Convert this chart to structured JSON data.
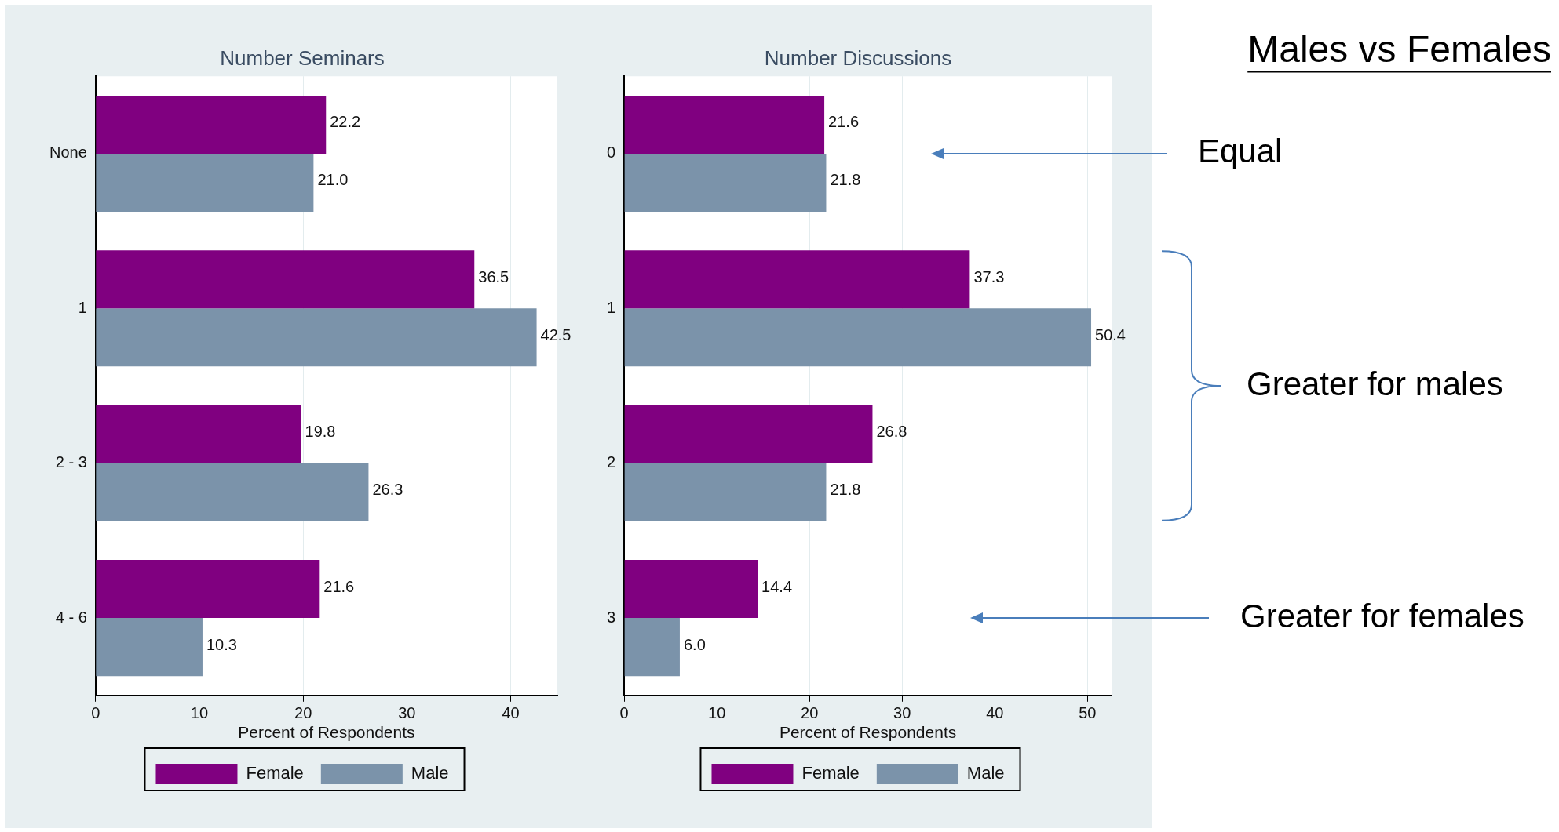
{
  "chart_data": [
    {
      "type": "bar",
      "orientation": "horizontal",
      "title": "Number Seminars",
      "xlabel": "Percent of Respondents",
      "categories": [
        "None",
        "1",
        "2 - 3",
        "4 - 6"
      ],
      "series": [
        {
          "name": "Female",
          "color": "#800080",
          "values": [
            22.2,
            36.5,
            19.8,
            21.6
          ],
          "value_labels": [
            "22.2",
            "36.5",
            "19.8",
            "21.6"
          ]
        },
        {
          "name": "Male",
          "color": "#7b93aa",
          "values": [
            21.0,
            42.5,
            26.3,
            10.3
          ],
          "value_labels": [
            "21.0",
            "42.5",
            "26.3",
            "10.3"
          ]
        }
      ],
      "xlim": [
        0,
        44.5
      ],
      "xticks": [
        0,
        10,
        20,
        30,
        40
      ],
      "grid": "x",
      "legend": "bottom"
    },
    {
      "type": "bar",
      "orientation": "horizontal",
      "title": "Number Discussions",
      "xlabel": "Percent of Respondents",
      "categories": [
        "0",
        "1",
        "2",
        "3"
      ],
      "series": [
        {
          "name": "Female",
          "color": "#800080",
          "values": [
            21.6,
            37.3,
            26.8,
            14.4
          ],
          "value_labels": [
            "21.6",
            "37.3",
            "26.8",
            "14.4"
          ]
        },
        {
          "name": "Male",
          "color": "#7b93aa",
          "values": [
            21.8,
            50.4,
            21.8,
            6.0
          ],
          "value_labels": [
            "21.8",
            "50.4",
            "21.8",
            "6.0"
          ]
        }
      ],
      "xlim": [
        0,
        52.6
      ],
      "xticks": [
        0,
        10,
        20,
        30,
        40,
        50
      ],
      "grid": "x",
      "legend": "bottom",
      "annotations": [
        "Males vs Females",
        "Equal",
        "Greater for males",
        "Greater for females"
      ]
    }
  ]
}
